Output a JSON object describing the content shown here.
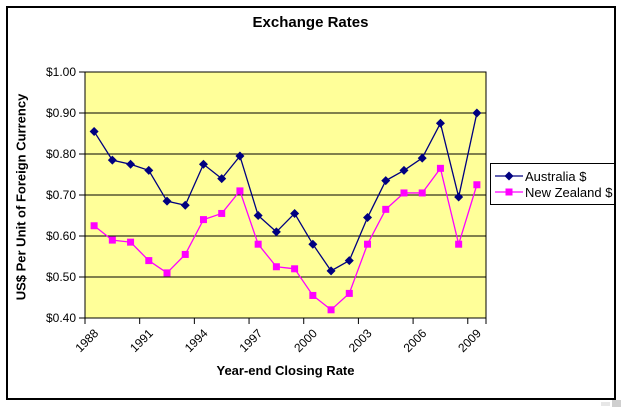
{
  "chart_data": {
    "type": "line",
    "title": "Exchange Rates",
    "xlabel": "Year-end Closing Rate",
    "ylabel": "US$ Per Unit of Foreign Currency",
    "categories": [
      "1988",
      "1989",
      "1990",
      "1991",
      "1992",
      "1993",
      "1994",
      "1995",
      "1996",
      "1997",
      "1998",
      "1999",
      "2000",
      "2001",
      "2002",
      "2003",
      "2004",
      "2005",
      "2006",
      "2007",
      "2008",
      "2009"
    ],
    "series": [
      {
        "id": "australia",
        "name": "Australia $",
        "color": "#000080",
        "marker": "diamond",
        "values": [
          0.855,
          0.785,
          0.775,
          0.76,
          0.685,
          0.675,
          0.775,
          0.74,
          0.795,
          0.65,
          0.61,
          0.655,
          0.58,
          0.515,
          0.54,
          0.645,
          0.735,
          0.76,
          0.79,
          0.875,
          0.695,
          0.9
        ]
      },
      {
        "id": "new-zealand",
        "name": "New Zealand $",
        "color": "#FF00FF",
        "marker": "square",
        "values": [
          0.625,
          0.59,
          0.585,
          0.54,
          0.51,
          0.555,
          0.64,
          0.655,
          0.71,
          0.58,
          0.525,
          0.52,
          0.455,
          0.42,
          0.46,
          0.58,
          0.665,
          0.705,
          0.705,
          0.765,
          0.58,
          0.725
        ]
      }
    ],
    "ylim": [
      0.4,
      1.0
    ],
    "y_ticks": [
      0.4,
      0.5,
      0.6,
      0.7,
      0.8,
      0.9,
      1.0
    ],
    "y_tick_labels": [
      "$0.40",
      "$0.50",
      "$0.60",
      "$0.70",
      "$0.80",
      "$0.90",
      "$1.00"
    ],
    "x_tick_labels": [
      {
        "index": 0,
        "label": "1988"
      },
      {
        "index": 3,
        "label": "1991"
      },
      {
        "index": 6,
        "label": "1994"
      },
      {
        "index": 9,
        "label": "1997"
      },
      {
        "index": 12,
        "label": "2000"
      },
      {
        "index": 15,
        "label": "2003"
      },
      {
        "index": 18,
        "label": "2006"
      },
      {
        "index": 21,
        "label": "2009"
      }
    ],
    "grid": "horizontal",
    "plot_bg": "#FFFF99",
    "legend_position": "right"
  }
}
